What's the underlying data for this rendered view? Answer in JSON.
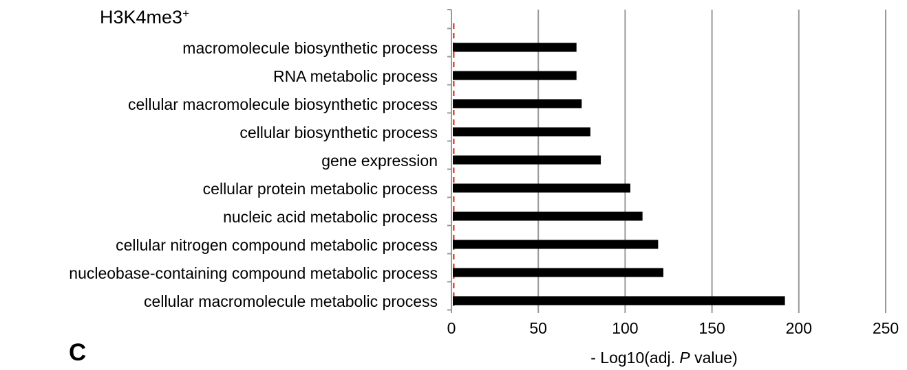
{
  "chart_data": {
    "type": "bar",
    "orientation": "horizontal",
    "title": "H3K4me3",
    "title_superscript": "+",
    "panel_label": "C",
    "xlabel_prefix": "- Log10(adj. ",
    "xlabel_italic": "P",
    "xlabel_suffix": " value)",
    "ylabel": "",
    "xlim": [
      0,
      250
    ],
    "xticks": [
      0,
      50,
      100,
      150,
      200,
      250
    ],
    "grid": "vertical",
    "threshold_line": {
      "x": 1.3,
      "style": "dashed",
      "color": "#e8452c"
    },
    "categories": [
      "macromolecule biosynthetic process",
      "RNA metabolic process",
      "cellular macromolecule biosynthetic process",
      "cellular biosynthetic process",
      "gene expression",
      "cellular protein metabolic process",
      "nucleic acid metabolic process",
      "cellular nitrogen compound metabolic process",
      "nucleobase-containing compound metabolic process",
      "cellular macromolecule metabolic process"
    ],
    "values": [
      72,
      72,
      75,
      80,
      86,
      103,
      110,
      119,
      122,
      192
    ],
    "bar_color": "#000000",
    "grid_color": "#999999"
  }
}
